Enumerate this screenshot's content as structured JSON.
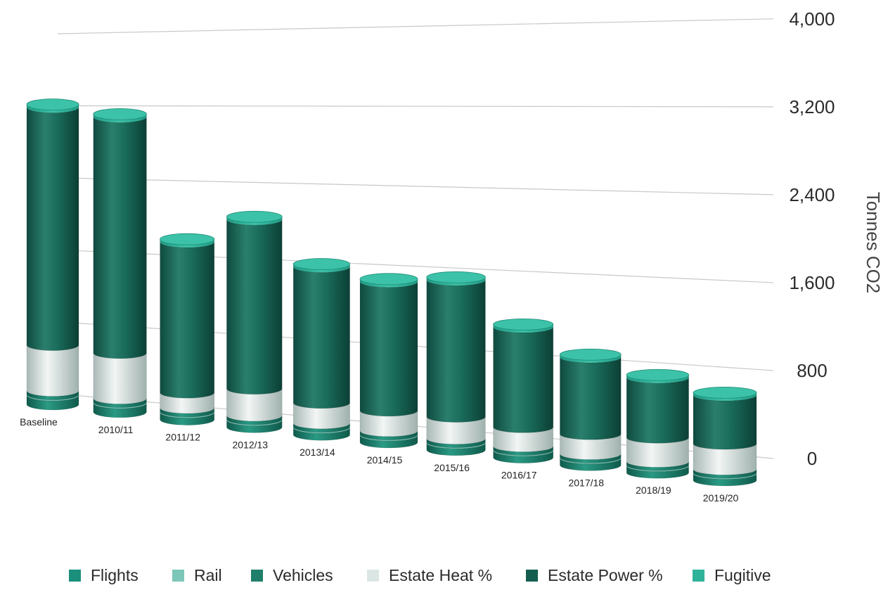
{
  "chart_data": {
    "type": "bar",
    "stacked": true,
    "style": "3d-cylinder",
    "title": "",
    "xlabel": "",
    "ylabel": "Tonnes CO2",
    "ylim": [
      0,
      4000
    ],
    "yticks": [
      "0",
      "800",
      "1,600",
      "2,400",
      "3,200",
      "4,000"
    ],
    "ytick_values": [
      0,
      800,
      1600,
      2400,
      3200,
      4000
    ],
    "grid": true,
    "legend_position": "bottom",
    "categories": [
      "Baseline",
      "2010/11",
      "2011/12",
      "2012/13",
      "2013/14",
      "2014/15",
      "2015/16",
      "2016/17",
      "2017/18",
      "2018/19",
      "2019/20"
    ],
    "series": [
      {
        "name": "Flights",
        "color": "#1a8f7c",
        "values": [
          100,
          100,
          80,
          80,
          80,
          80,
          80,
          80,
          80,
          80,
          80
        ]
      },
      {
        "name": "Rail",
        "color": "#7cc7b7",
        "values": [
          10,
          10,
          10,
          10,
          10,
          10,
          10,
          10,
          10,
          10,
          10
        ]
      },
      {
        "name": "Vehicles",
        "color": "#1f7f6a",
        "values": [
          40,
          40,
          40,
          40,
          40,
          40,
          40,
          40,
          40,
          40,
          40
        ]
      },
      {
        "name": "Estate Heat %",
        "color": "#dbe6e4",
        "values": [
          500,
          500,
          170,
          300,
          230,
          230,
          250,
          220,
          230,
          280,
          300
        ]
      },
      {
        "name": "Estate Power %",
        "color": "#145e50",
        "values": [
          2600,
          2600,
          1670,
          1890,
          1530,
          1460,
          1560,
          1150,
          890,
          700,
          570
        ]
      },
      {
        "name": "Fugitive",
        "color": "#2fb29a",
        "values": [
          30,
          30,
          30,
          30,
          30,
          30,
          30,
          30,
          30,
          30,
          30
        ]
      }
    ]
  }
}
